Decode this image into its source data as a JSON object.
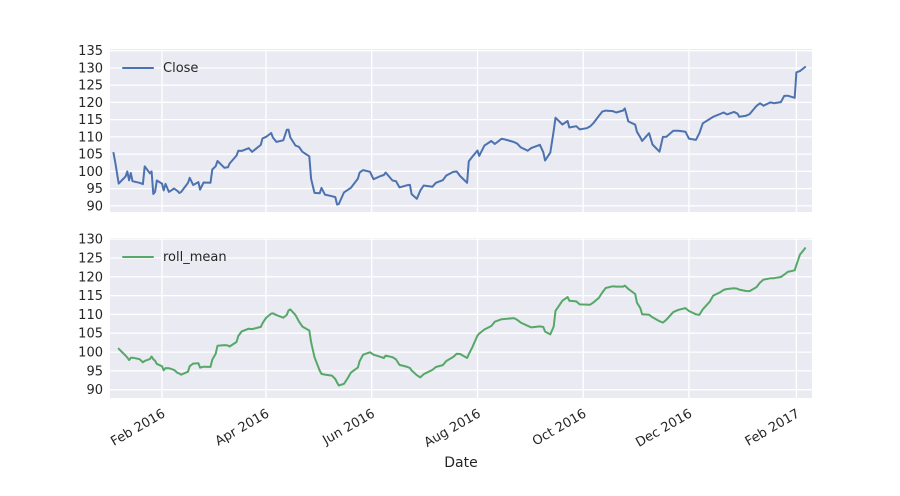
{
  "figure": {
    "background": "#ffffff",
    "panel_background": "#eaeaf2",
    "grid_color": "#ffffff",
    "text_color": "#262626"
  },
  "chart_data": {
    "type": "line",
    "title": "",
    "x_label": "Date",
    "grid": true,
    "legend_position": "upper left",
    "xlim": [
      "2016-01-02",
      "2017-02-10"
    ],
    "x_ticks": {
      "labels": [
        "Feb 2016",
        "Apr 2016",
        "Jun 2016",
        "Aug 2016",
        "Oct 2016",
        "Dec 2016",
        "Feb 2017"
      ],
      "dates": [
        "2016-02-01",
        "2016-04-01",
        "2016-06-01",
        "2016-08-01",
        "2016-10-01",
        "2016-12-01",
        "2017-02-01"
      ]
    },
    "x": [
      "2016-01-04",
      "2016-01-05",
      "2016-01-07",
      "2016-01-08",
      "2016-01-11",
      "2016-01-12",
      "2016-01-13",
      "2016-01-14",
      "2016-01-15",
      "2016-01-19",
      "2016-01-21",
      "2016-01-22",
      "2016-01-25",
      "2016-01-26",
      "2016-01-27",
      "2016-01-28",
      "2016-01-29",
      "2016-02-01",
      "2016-02-02",
      "2016-02-03",
      "2016-02-05",
      "2016-02-08",
      "2016-02-10",
      "2016-02-11",
      "2016-02-12",
      "2016-02-16",
      "2016-02-17",
      "2016-02-19",
      "2016-02-22",
      "2016-02-23",
      "2016-02-25",
      "2016-02-29",
      "2016-03-01",
      "2016-03-03",
      "2016-03-04",
      "2016-03-08",
      "2016-03-10",
      "2016-03-11",
      "2016-03-15",
      "2016-03-16",
      "2016-03-18",
      "2016-03-22",
      "2016-03-24",
      "2016-03-29",
      "2016-03-30",
      "2016-04-01",
      "2016-04-04",
      "2016-04-05",
      "2016-04-07",
      "2016-04-11",
      "2016-04-13",
      "2016-04-14",
      "2016-04-15",
      "2016-04-18",
      "2016-04-20",
      "2016-04-22",
      "2016-04-26",
      "2016-04-27",
      "2016-04-29",
      "2016-05-02",
      "2016-05-03",
      "2016-05-05",
      "2016-05-09",
      "2016-05-11",
      "2016-05-12",
      "2016-05-13",
      "2016-05-16",
      "2016-05-18",
      "2016-05-20",
      "2016-05-24",
      "2016-05-25",
      "2016-05-27",
      "2016-05-31",
      "2016-06-02",
      "2016-06-06",
      "2016-06-08",
      "2016-06-09",
      "2016-06-13",
      "2016-06-15",
      "2016-06-17",
      "2016-06-21",
      "2016-06-23",
      "2016-06-24",
      "2016-06-27",
      "2016-06-29",
      "2016-07-01",
      "2016-07-06",
      "2016-07-08",
      "2016-07-12",
      "2016-07-14",
      "2016-07-18",
      "2016-07-20",
      "2016-07-22",
      "2016-07-26",
      "2016-07-27",
      "2016-07-29",
      "2016-08-01",
      "2016-08-02",
      "2016-08-05",
      "2016-08-09",
      "2016-08-11",
      "2016-08-15",
      "2016-08-18",
      "2016-08-22",
      "2016-08-24",
      "2016-08-26",
      "2016-08-30",
      "2016-09-01",
      "2016-09-06",
      "2016-09-08",
      "2016-09-09",
      "2016-09-12",
      "2016-09-14",
      "2016-09-15",
      "2016-09-19",
      "2016-09-22",
      "2016-09-23",
      "2016-09-27",
      "2016-09-29",
      "2016-10-03",
      "2016-10-05",
      "2016-10-07",
      "2016-10-10",
      "2016-10-12",
      "2016-10-14",
      "2016-10-18",
      "2016-10-20",
      "2016-10-24",
      "2016-10-25",
      "2016-10-27",
      "2016-10-31",
      "2016-11-01",
      "2016-11-03",
      "2016-11-04",
      "2016-11-08",
      "2016-11-10",
      "2016-11-14",
      "2016-11-16",
      "2016-11-18",
      "2016-11-22",
      "2016-11-25",
      "2016-11-29",
      "2016-12-01",
      "2016-12-05",
      "2016-12-07",
      "2016-12-09",
      "2016-12-13",
      "2016-12-15",
      "2016-12-19",
      "2016-12-21",
      "2016-12-23",
      "2016-12-27",
      "2016-12-29",
      "2016-12-30",
      "2017-01-03",
      "2017-01-05",
      "2017-01-09",
      "2017-01-11",
      "2017-01-13",
      "2017-01-17",
      "2017-01-19",
      "2017-01-23",
      "2017-01-25",
      "2017-01-27",
      "2017-01-31",
      "2017-02-01",
      "2017-02-03",
      "2017-02-06"
    ],
    "series": [
      {
        "name": "Close",
        "color": "#4c72b0",
        "line_width": 2,
        "panel": "top",
        "ylim": [
          88.2,
          135.5
        ],
        "yticks": [
          135,
          130,
          125,
          120,
          115,
          110,
          105,
          100,
          95,
          90
        ],
        "values": [
          105.35,
          102.71,
          96.45,
          96.96,
          98.53,
          99.96,
          97.39,
          99.52,
          97.13,
          96.66,
          96.3,
          101.42,
          99.44,
          99.99,
          93.42,
          94.09,
          97.34,
          96.43,
          94.48,
          96.35,
          94.02,
          95.01,
          94.27,
          93.7,
          93.99,
          96.64,
          98.12,
          96.04,
          96.88,
          94.69,
          96.76,
          96.69,
          100.53,
          101.5,
          103.01,
          101.03,
          101.17,
          102.26,
          104.58,
          105.97,
          105.92,
          106.72,
          105.67,
          107.68,
          109.56,
          109.99,
          111.12,
          109.81,
          108.54,
          109.02,
          112.04,
          112.1,
          109.85,
          107.48,
          107.13,
          105.68,
          104.35,
          97.82,
          93.74,
          93.64,
          95.18,
          93.24,
          92.79,
          92.51,
          90.34,
          90.52,
          93.88,
          94.56,
          95.22,
          97.9,
          99.62,
          100.35,
          99.86,
          97.72,
          98.63,
          98.94,
          99.65,
          97.34,
          97.14,
          95.33,
          95.91,
          96.1,
          93.4,
          92.04,
          94.4,
          95.89,
          95.53,
          96.68,
          97.42,
          98.79,
          99.83,
          99.96,
          98.66,
          96.67,
          102.95,
          104.21,
          106.05,
          104.48,
          107.48,
          108.81,
          107.93,
          109.48,
          109.08,
          108.51,
          108.03,
          106.94,
          106.0,
          106.73,
          107.7,
          105.52,
          103.13,
          105.44,
          111.77,
          115.57,
          113.58,
          114.62,
          112.71,
          113.09,
          112.18,
          112.52,
          113.05,
          114.06,
          116.05,
          117.34,
          117.63,
          117.47,
          117.06,
          117.65,
          118.25,
          114.48,
          113.54,
          111.49,
          109.83,
          108.84,
          111.06,
          107.79,
          105.71,
          109.99,
          110.06,
          111.8,
          111.79,
          111.46,
          109.49,
          109.11,
          111.03,
          113.95,
          115.19,
          115.82,
          116.64,
          117.06,
          116.52,
          117.26,
          116.73,
          115.82,
          116.15,
          116.61,
          118.99,
          119.75,
          119.04,
          120.0,
          119.78,
          120.08,
          121.88,
          121.95,
          121.35,
          128.75,
          129.08,
          130.29
        ]
      },
      {
        "name": "roll_mean",
        "color": "#55a868",
        "line_width": 2,
        "panel": "bottom",
        "ylim": [
          87.8,
          130.3
        ],
        "yticks": [
          130,
          125,
          120,
          115,
          110,
          105,
          100,
          95,
          90
        ],
        "values": [
          null,
          null,
          100.9,
          100.43,
          99.07,
          98.52,
          97.86,
          98.47,
          98.51,
          98.13,
          97.28,
          97.66,
          98.12,
          98.79,
          98.11,
          97.67,
          96.86,
          96.25,
          95.15,
          95.74,
          95.72,
          95.26,
          94.43,
          94.33,
          93.99,
          94.78,
          96.25,
          96.93,
          97.01,
          95.87,
          96.11,
          96.05,
          97.99,
          99.57,
          101.68,
          101.85,
          101.74,
          101.49,
          102.67,
          104.27,
          105.49,
          106.2,
          106.1,
          106.69,
          107.64,
          109.08,
          110.22,
          110.31,
          109.82,
          109.12,
          109.87,
          111.05,
          111.33,
          109.81,
          108.15,
          106.76,
          105.72,
          102.62,
          98.64,
          95.07,
          94.19,
          94.02,
          93.74,
          92.85,
          91.88,
          91.12,
          91.58,
          92.99,
          94.55,
          95.89,
          97.58,
          99.29,
          99.94,
          99.31,
          98.74,
          98.43,
          99.07,
          98.64,
          98.04,
          96.6,
          96.13,
          95.78,
          95.14,
          93.85,
          93.28,
          94.11,
          95.27,
          96.03,
          96.54,
          97.63,
          98.68,
          99.53,
          99.48,
          98.43,
          99.43,
          101.28,
          104.4,
          104.91,
          106.0,
          106.92,
          108.07,
          108.74,
          108.83,
          109.02,
          108.54,
          107.83,
          106.99,
          106.56,
          106.81,
          106.65,
          105.45,
          104.7,
          106.78,
          110.93,
          113.64,
          114.59,
          113.64,
          113.47,
          112.66,
          112.6,
          112.58,
          113.21,
          114.39,
          115.82,
          117.01,
          117.48,
          117.39,
          117.39,
          117.65,
          116.79,
          115.42,
          113.17,
          111.62,
          110.05,
          109.91,
          109.23,
          108.19,
          107.83,
          108.59,
          110.62,
          111.22,
          111.68,
          110.91,
          110.02,
          109.88,
          111.36,
          113.39,
          114.99,
          115.88,
          116.51,
          116.74,
          116.95,
          116.84,
          116.6,
          116.23,
          116.19,
          117.25,
          118.45,
          119.26,
          119.6,
          119.61,
          119.95,
          120.58,
          121.3,
          121.73,
          123.12,
          125.87,
          127.6
        ]
      }
    ]
  }
}
